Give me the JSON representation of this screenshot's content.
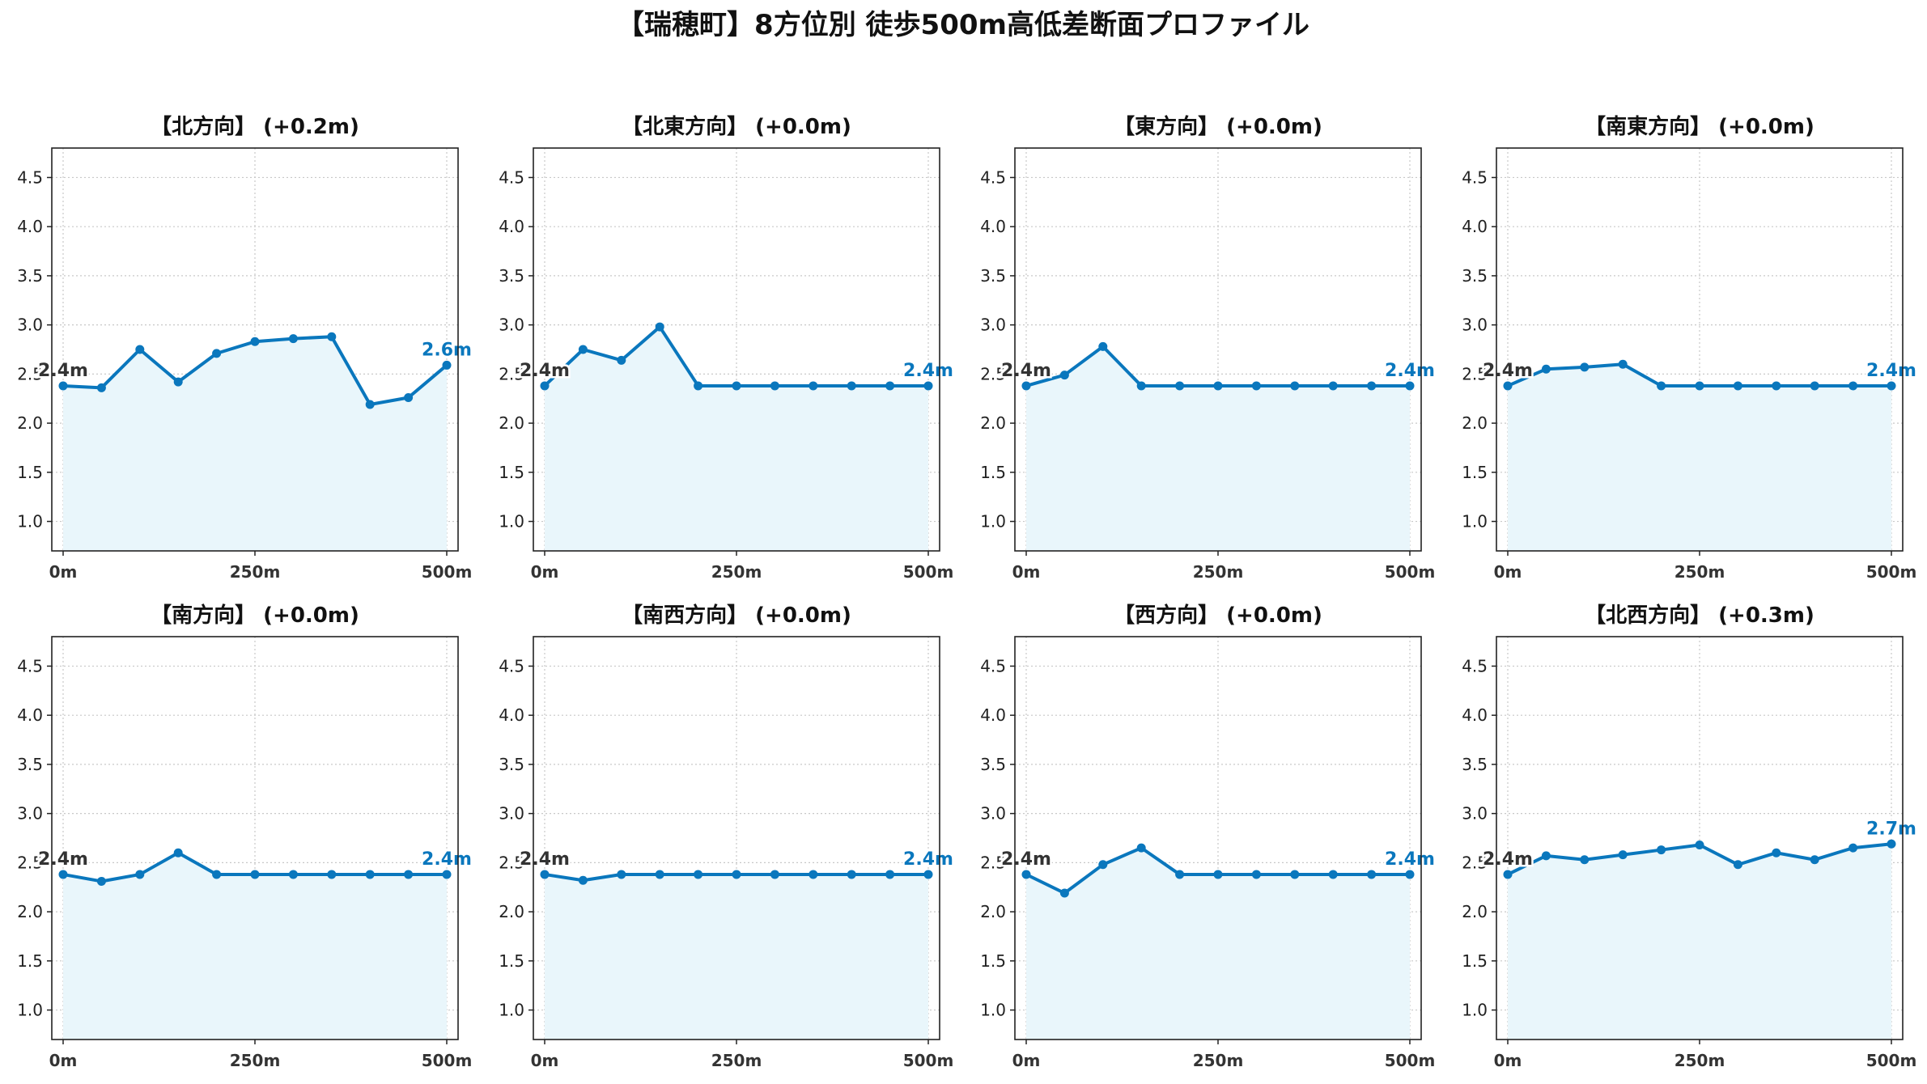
{
  "suptitle": "【瑞穂町】8方位別 徒歩500m高低差断面プロファイル",
  "colors": {
    "line": "#0a77bd",
    "fill": "#e9f6fb",
    "grid": "#c8c8c8",
    "start_label": "#333333",
    "end_label": "#0a77bd"
  },
  "chart_data": [
    {
      "type": "area",
      "title": "【北方向】 (+0.2m)",
      "x": [
        0,
        50,
        100,
        150,
        200,
        250,
        300,
        350,
        400,
        450,
        500
      ],
      "y": [
        2.38,
        2.36,
        2.75,
        2.42,
        2.71,
        2.83,
        2.86,
        2.88,
        2.19,
        2.26,
        2.59
      ],
      "xticks": [
        "0m",
        "250m",
        "500m"
      ],
      "yticks": [
        "1.0",
        "1.5",
        "2.0",
        "2.5",
        "3.0",
        "3.5",
        "4.0",
        "4.5"
      ],
      "xlim": [
        0,
        500
      ],
      "ylim": [
        0.7,
        4.8
      ],
      "grid": true,
      "start_label": "2.4m",
      "end_label": "2.6m"
    },
    {
      "type": "area",
      "title": "【北東方向】 (+0.0m)",
      "x": [
        0,
        50,
        100,
        150,
        200,
        250,
        300,
        350,
        400,
        450,
        500
      ],
      "y": [
        2.38,
        2.75,
        2.64,
        2.98,
        2.38,
        2.38,
        2.38,
        2.38,
        2.38,
        2.38,
        2.38
      ],
      "xticks": [
        "0m",
        "250m",
        "500m"
      ],
      "yticks": [
        "1.0",
        "1.5",
        "2.0",
        "2.5",
        "3.0",
        "3.5",
        "4.0",
        "4.5"
      ],
      "xlim": [
        0,
        500
      ],
      "ylim": [
        0.7,
        4.8
      ],
      "grid": true,
      "start_label": "2.4m",
      "end_label": "2.4m"
    },
    {
      "type": "area",
      "title": "【東方向】 (+0.0m)",
      "x": [
        0,
        50,
        100,
        150,
        200,
        250,
        300,
        350,
        400,
        450,
        500
      ],
      "y": [
        2.38,
        2.49,
        2.78,
        2.38,
        2.38,
        2.38,
        2.38,
        2.38,
        2.38,
        2.38,
        2.38
      ],
      "xticks": [
        "0m",
        "250m",
        "500m"
      ],
      "yticks": [
        "1.0",
        "1.5",
        "2.0",
        "2.5",
        "3.0",
        "3.5",
        "4.0",
        "4.5"
      ],
      "xlim": [
        0,
        500
      ],
      "ylim": [
        0.7,
        4.8
      ],
      "grid": true,
      "start_label": "2.4m",
      "end_label": "2.4m"
    },
    {
      "type": "area",
      "title": "【南東方向】 (+0.0m)",
      "x": [
        0,
        50,
        100,
        150,
        200,
        250,
        300,
        350,
        400,
        450,
        500
      ],
      "y": [
        2.38,
        2.55,
        2.57,
        2.6,
        2.38,
        2.38,
        2.38,
        2.38,
        2.38,
        2.38,
        2.38
      ],
      "xticks": [
        "0m",
        "250m",
        "500m"
      ],
      "yticks": [
        "1.0",
        "1.5",
        "2.0",
        "2.5",
        "3.0",
        "3.5",
        "4.0",
        "4.5"
      ],
      "xlim": [
        0,
        500
      ],
      "ylim": [
        0.7,
        4.8
      ],
      "grid": true,
      "start_label": "2.4m",
      "end_label": "2.4m"
    },
    {
      "type": "area",
      "title": "【南方向】 (+0.0m)",
      "x": [
        0,
        50,
        100,
        150,
        200,
        250,
        300,
        350,
        400,
        450,
        500
      ],
      "y": [
        2.38,
        2.31,
        2.38,
        2.6,
        2.38,
        2.38,
        2.38,
        2.38,
        2.38,
        2.38,
        2.38
      ],
      "xticks": [
        "0m",
        "250m",
        "500m"
      ],
      "yticks": [
        "1.0",
        "1.5",
        "2.0",
        "2.5",
        "3.0",
        "3.5",
        "4.0",
        "4.5"
      ],
      "xlim": [
        0,
        500
      ],
      "ylim": [
        0.7,
        4.8
      ],
      "grid": true,
      "start_label": "2.4m",
      "end_label": "2.4m"
    },
    {
      "type": "area",
      "title": "【南西方向】 (+0.0m)",
      "x": [
        0,
        50,
        100,
        150,
        200,
        250,
        300,
        350,
        400,
        450,
        500
      ],
      "y": [
        2.38,
        2.32,
        2.38,
        2.38,
        2.38,
        2.38,
        2.38,
        2.38,
        2.38,
        2.38,
        2.38
      ],
      "xticks": [
        "0m",
        "250m",
        "500m"
      ],
      "yticks": [
        "1.0",
        "1.5",
        "2.0",
        "2.5",
        "3.0",
        "3.5",
        "4.0",
        "4.5"
      ],
      "xlim": [
        0,
        500
      ],
      "ylim": [
        0.7,
        4.8
      ],
      "grid": true,
      "start_label": "2.4m",
      "end_label": "2.4m"
    },
    {
      "type": "area",
      "title": "【西方向】 (+0.0m)",
      "x": [
        0,
        50,
        100,
        150,
        200,
        250,
        300,
        350,
        400,
        450,
        500
      ],
      "y": [
        2.38,
        2.19,
        2.48,
        2.65,
        2.38,
        2.38,
        2.38,
        2.38,
        2.38,
        2.38,
        2.38
      ],
      "xticks": [
        "0m",
        "250m",
        "500m"
      ],
      "yticks": [
        "1.0",
        "1.5",
        "2.0",
        "2.5",
        "3.0",
        "3.5",
        "4.0",
        "4.5"
      ],
      "xlim": [
        0,
        500
      ],
      "ylim": [
        0.7,
        4.8
      ],
      "grid": true,
      "start_label": "2.4m",
      "end_label": "2.4m"
    },
    {
      "type": "area",
      "title": "【北西方向】 (+0.3m)",
      "x": [
        0,
        50,
        100,
        150,
        200,
        250,
        300,
        350,
        400,
        450,
        500
      ],
      "y": [
        2.38,
        2.57,
        2.53,
        2.58,
        2.63,
        2.68,
        2.48,
        2.6,
        2.53,
        2.65,
        2.69
      ],
      "xticks": [
        "0m",
        "250m",
        "500m"
      ],
      "yticks": [
        "1.0",
        "1.5",
        "2.0",
        "2.5",
        "3.0",
        "3.5",
        "4.0",
        "4.5"
      ],
      "xlim": [
        0,
        500
      ],
      "ylim": [
        0.7,
        4.8
      ],
      "grid": true,
      "start_label": "2.4m",
      "end_label": "2.7m"
    }
  ]
}
